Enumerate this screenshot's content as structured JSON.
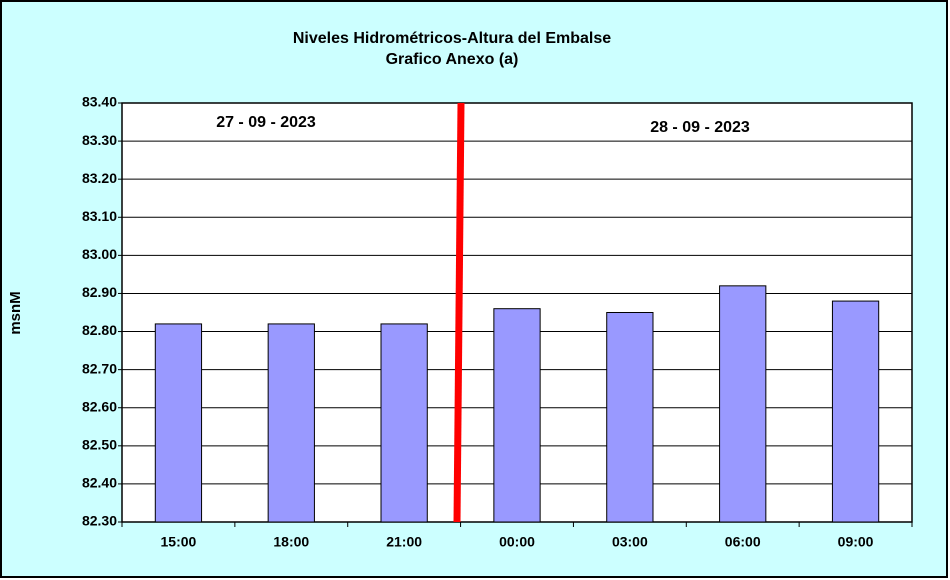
{
  "chart_data": {
    "type": "bar",
    "title": "Niveles Hidrométricos-Altura del Embalse",
    "subtitle": "Grafico Anexo (a)",
    "y_label": "msnM",
    "annotations": [
      "27 - 09 - 2023",
      "28 - 09 - 2023"
    ],
    "categories": [
      "15:00",
      "18:00",
      "21:00",
      "00:00",
      "03:00",
      "06:00",
      "09:00"
    ],
    "values": [
      82.82,
      82.82,
      82.82,
      82.86,
      82.85,
      82.92,
      82.88
    ],
    "color": "#9999ff",
    "ylim": [
      82.3,
      83.4
    ],
    "yticks": [
      {
        "value": 82.3,
        "label": "82.30"
      },
      {
        "value": 82.4,
        "label": "82.40"
      },
      {
        "value": 82.5,
        "label": "82.50"
      },
      {
        "value": 82.6,
        "label": "82.60"
      },
      {
        "value": 82.7,
        "label": "82.70"
      },
      {
        "value": 82.8,
        "label": "82.80"
      },
      {
        "value": 82.9,
        "label": "82.90"
      },
      {
        "value": 83.0,
        "label": "83.00"
      },
      {
        "value": 83.1,
        "label": "83.10"
      },
      {
        "value": 83.2,
        "label": "83.20"
      },
      {
        "value": 83.3,
        "label": "83.30"
      },
      {
        "value": 83.4,
        "label": "83.40"
      }
    ],
    "grid": true
  }
}
